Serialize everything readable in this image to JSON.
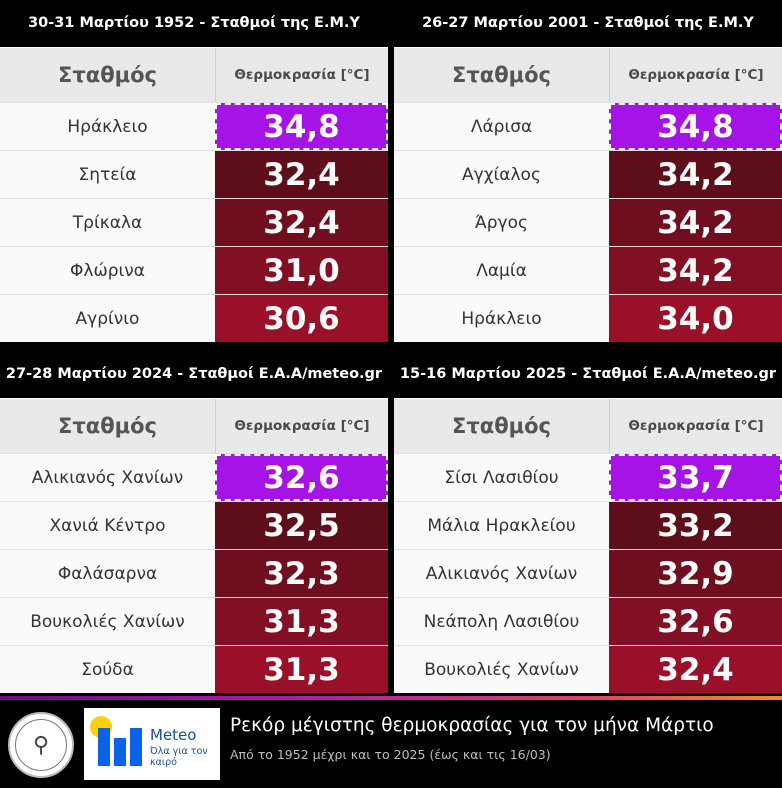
{
  "colors": {
    "highlight": "#a513e6",
    "rank2": "#5e0d1a",
    "rank3": "#6e0e1e",
    "rank4": "#820f23",
    "rank5": "#9a1029"
  },
  "header_labels": {
    "station": "Σταθμός",
    "temperature": "Θερμοκρασία [°C]"
  },
  "panels": [
    {
      "title": "30-31 Μαρτίου 1952 - Σταθμοί της Ε.Μ.Υ",
      "rows": [
        {
          "name": "Ηράκλειο",
          "value": "34,8"
        },
        {
          "name": "Σητεία",
          "value": "32,4"
        },
        {
          "name": "Τρίκαλα",
          "value": "32,4"
        },
        {
          "name": "Φλώρινα",
          "value": "31,0"
        },
        {
          "name": "Αγρίνιο",
          "value": "30,6"
        }
      ]
    },
    {
      "title": "26-27 Μαρτίου 2001 - Σταθμοί της Ε.Μ.Υ",
      "rows": [
        {
          "name": "Λάρισα",
          "value": "34,8"
        },
        {
          "name": "Αγχίαλος",
          "value": "34,2"
        },
        {
          "name": "Άργος",
          "value": "34,2"
        },
        {
          "name": "Λαμία",
          "value": "34,2"
        },
        {
          "name": "Ηράκλειο",
          "value": "34,0"
        }
      ]
    },
    {
      "title": "27-28 Μαρτίου 2024 - Σταθμοί Ε.Α.Α/meteo.gr",
      "rows": [
        {
          "name": "Αλικιανός Χανίων",
          "value": "32,6"
        },
        {
          "name": "Χανιά Κέντρο",
          "value": "32,5"
        },
        {
          "name": "Φαλάσαρνα",
          "value": "32,3"
        },
        {
          "name": "Βουκολιές Χανίων",
          "value": "31,3"
        },
        {
          "name": "Σούδα",
          "value": "31,3"
        }
      ]
    },
    {
      "title": "15-16 Μαρτίου 2025 - Σταθμοί Ε.Α.Α/meteo.gr",
      "rows": [
        {
          "name": "Σίσι Λασιθίου",
          "value": "33,7"
        },
        {
          "name": "Μάλια Ηρακλείου",
          "value": "33,2"
        },
        {
          "name": "Αλικιανός Χανίων",
          "value": "32,9"
        },
        {
          "name": "Νεάπολη Λασιθίου",
          "value": "32,6"
        },
        {
          "name": "Βουκολιές Χανίων",
          "value": "32,4"
        }
      ]
    }
  ],
  "footer": {
    "title": "Ρεκόρ μέγιστης θερμοκρασίας για τον μήνα Μάρτιο",
    "subtitle": "Από το 1952 μέχρι και το 2025 (έως και τις 16/03)",
    "meteo_name": "Meteo",
    "meteo_tagline": "Όλα για τον καιρό",
    "left_logo_icon": "observatory-seal-icon",
    "right_logo_icon": "meteo-logo-icon"
  }
}
